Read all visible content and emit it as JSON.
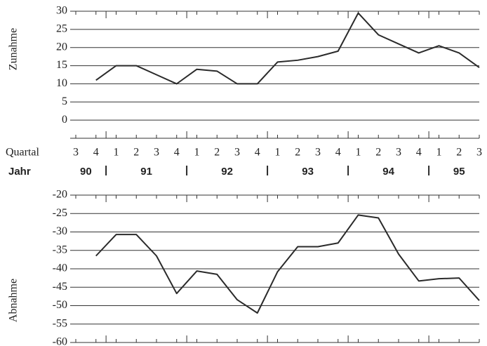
{
  "chart_data": [
    {
      "type": "line",
      "y_label": "Zunahme",
      "x_label": "Quartal",
      "group_label": "Jahr",
      "categories": [
        "3",
        "4",
        "1",
        "2",
        "3",
        "4",
        "1",
        "2",
        "3",
        "4",
        "1",
        "2",
        "3",
        "4",
        "1",
        "2",
        "3",
        "4",
        "1",
        "2",
        "3"
      ],
      "groups": [
        "90",
        "91",
        "92",
        "93",
        "94",
        "95"
      ],
      "color": "#2a2a2a",
      "values": [
        null,
        11,
        15,
        15,
        12.5,
        10,
        14,
        13.5,
        10,
        10,
        16,
        16.5,
        17.5,
        19,
        29.5,
        23.5,
        21,
        18.5,
        20.5,
        18.5,
        14.5
      ],
      "ylim": [
        -5,
        30
      ],
      "yticks": [
        0,
        5,
        10,
        15,
        20,
        25,
        30
      ],
      "grid": true
    },
    {
      "type": "line",
      "y_label": "Abnahme",
      "color": "#2a2a2a",
      "values": [
        null,
        -36.5,
        -30.7,
        -30.7,
        -36.5,
        -46.7,
        -40.6,
        -41.5,
        -48.4,
        -52,
        -40.8,
        -34,
        -34,
        -33,
        -25.4,
        -26.2,
        -36,
        -43.3,
        -42.7,
        -42.5,
        -48.6
      ],
      "ylim": [
        -60,
        -20
      ],
      "yticks": [
        -20,
        -25,
        -30,
        -35,
        -40,
        -45,
        -50,
        -55,
        -60
      ],
      "grid": true
    }
  ]
}
